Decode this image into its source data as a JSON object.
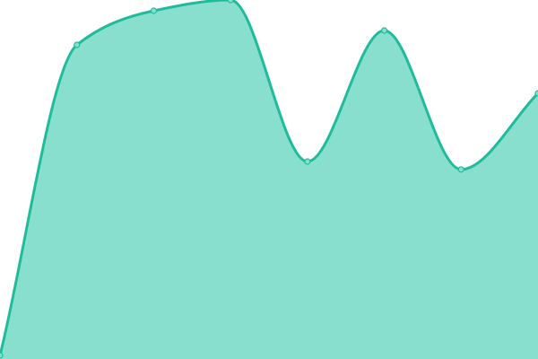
{
  "chart_data": {
    "type": "area",
    "x": [
      0,
      1,
      2,
      3,
      4,
      5,
      6,
      7
    ],
    "values": [
      1,
      87.5,
      97,
      100,
      55,
      91.5,
      52.8,
      74
    ],
    "ylim": [
      0,
      100
    ],
    "grid": false,
    "axes_visible": false,
    "line_color": "#1fbc9c",
    "fill_color": "#88dfce",
    "point_fill": "#88dfce"
  }
}
